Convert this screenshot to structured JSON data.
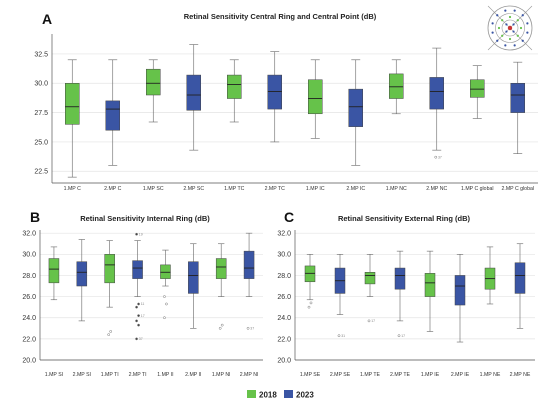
{
  "colors": {
    "y2018": "#66c24a",
    "y2023": "#3a55a4"
  },
  "legend": [
    {
      "label": "2018",
      "color": "#66c24a"
    },
    {
      "label": "2023",
      "color": "#3a55a4"
    }
  ],
  "panels": [
    {
      "letter": "A"
    },
    {
      "letter": "B"
    },
    {
      "letter": "C"
    }
  ],
  "chart_data": [
    {
      "type": "box",
      "title": "Retinal Sensitivity Central Ring and Central Point (dB)",
      "ylim": [
        21.5,
        34.2
      ],
      "yticks": [
        22.5,
        25.0,
        27.5,
        30.0,
        32.5
      ],
      "ytick_labels": [
        "22.5",
        "25.0",
        "27.5",
        "30.0",
        "32.5"
      ],
      "categories": [
        "1.MP C",
        "2.MP C",
        "1.MP SC",
        "2.MP SC",
        "1.MP TC",
        "2.MP TC",
        "1.MP IC",
        "2.MP IC",
        "1.MP NC",
        "2.MP NC",
        "1.MP C global",
        "2.MP C global"
      ],
      "boxes": [
        {
          "min": 22.0,
          "q1": 26.5,
          "median": 28.0,
          "q3": 30.0,
          "max": 32.0,
          "outliers": []
        },
        {
          "min": 23.0,
          "q1": 26.0,
          "median": 27.8,
          "q3": 28.5,
          "max": 32.0,
          "outliers": []
        },
        {
          "min": 26.7,
          "q1": 29.0,
          "median": 30.0,
          "q3": 31.2,
          "max": 32.0,
          "outliers": []
        },
        {
          "min": 24.3,
          "q1": 27.7,
          "median": 29.0,
          "q3": 30.7,
          "max": 33.3,
          "outliers": []
        },
        {
          "min": 26.7,
          "q1": 28.7,
          "median": 29.9,
          "q3": 30.7,
          "max": 32.0,
          "outliers": []
        },
        {
          "min": 25.0,
          "q1": 27.8,
          "median": 29.3,
          "q3": 30.7,
          "max": 32.7,
          "outliers": []
        },
        {
          "min": 25.3,
          "q1": 27.4,
          "median": 28.7,
          "q3": 30.3,
          "max": 32.0,
          "outliers": []
        },
        {
          "min": 23.0,
          "q1": 26.3,
          "median": 28.0,
          "q3": 29.5,
          "max": 32.0,
          "outliers": []
        },
        {
          "min": 27.4,
          "q1": 28.7,
          "median": 29.7,
          "q3": 30.8,
          "max": 32.0,
          "outliers": []
        },
        {
          "min": 24.3,
          "q1": 27.8,
          "median": 29.3,
          "q3": 30.5,
          "max": 33.0,
          "outliers": [
            {
              "value": 23.7,
              "label": "37"
            }
          ]
        },
        {
          "min": 27.0,
          "q1": 28.8,
          "median": 29.5,
          "q3": 30.3,
          "max": 31.5,
          "outliers": []
        },
        {
          "min": 24.0,
          "q1": 27.5,
          "median": 29.0,
          "q3": 30.0,
          "max": 31.8,
          "outliers": []
        }
      ]
    },
    {
      "type": "box",
      "title": "Retinal Sensitivity Internal Ring (dB)",
      "ylim": [
        20.0,
        32.3
      ],
      "yticks": [
        20,
        22,
        24,
        26,
        28,
        30,
        32
      ],
      "ytick_labels": [
        "20.0",
        "22.0",
        "24.0",
        "26.0",
        "28.0",
        "30.0",
        "32.0"
      ],
      "categories": [
        "1.MP SI",
        "2.MP SI",
        "1.MP TI",
        "2.MP TI",
        "1.MP II",
        "2.MP II",
        "1.MP NI",
        "2.MP NI"
      ],
      "boxes": [
        {
          "min": 25.7,
          "q1": 27.3,
          "median": 28.6,
          "q3": 29.6,
          "max": 30.7,
          "outliers": []
        },
        {
          "min": 23.7,
          "q1": 27.0,
          "median": 28.3,
          "q3": 29.3,
          "max": 31.4,
          "outliers": []
        },
        {
          "min": 25.0,
          "q1": 27.3,
          "median": 29.0,
          "q3": 30.0,
          "max": 31.3,
          "outliers": [
            {
              "value": 22.4,
              "label": ""
            },
            {
              "value": 22.7,
              "label": ""
            }
          ]
        },
        {
          "min": 26.0,
          "q1": 27.7,
          "median": 28.7,
          "q3": 29.4,
          "max": 31.3,
          "outliers": [
            {
              "value": 31.9,
              "label": "19"
            },
            {
              "value": 25.3,
              "label": "11"
            },
            {
              "value": 25.0,
              "label": ""
            },
            {
              "value": 24.2,
              "label": "17"
            },
            {
              "value": 23.7,
              "label": ""
            },
            {
              "value": 23.3,
              "label": ""
            },
            {
              "value": 22.0,
              "label": "37"
            }
          ]
        },
        {
          "min": 27.0,
          "q1": 27.7,
          "median": 28.3,
          "q3": 29.0,
          "max": 30.4,
          "outliers": [
            {
              "value": 26.0,
              "label": ""
            },
            {
              "value": 25.3,
              "label": ""
            },
            {
              "value": 24.0,
              "label": ""
            }
          ]
        },
        {
          "min": 23.0,
          "q1": 26.3,
          "median": 28.0,
          "q3": 29.3,
          "max": 31.0,
          "outliers": []
        },
        {
          "min": 26.0,
          "q1": 27.7,
          "median": 28.8,
          "q3": 29.6,
          "max": 31.0,
          "outliers": [
            {
              "value": 23.0,
              "label": ""
            },
            {
              "value": 23.3,
              "label": ""
            }
          ]
        },
        {
          "min": 26.0,
          "q1": 27.7,
          "median": 28.7,
          "q3": 30.3,
          "max": 32.0,
          "outliers": [
            {
              "value": 23.0,
              "label": "37"
            }
          ]
        }
      ]
    },
    {
      "type": "box",
      "title": "Retinal Sensitivity External Ring (dB)",
      "ylim": [
        20.0,
        32.3
      ],
      "yticks": [
        20,
        22,
        24,
        26,
        28,
        30,
        32
      ],
      "ytick_labels": [
        "20.0",
        "22.0",
        "24.0",
        "26.0",
        "28.0",
        "30.0",
        "32.0"
      ],
      "categories": [
        "1.MP SE",
        "2.MP SE",
        "1.MP TE",
        "2.MP TE",
        "1.MP IE",
        "2.MP IE",
        "1.MP NE",
        "2.MP NE"
      ],
      "boxes": [
        {
          "min": 25.7,
          "q1": 27.4,
          "median": 28.2,
          "q3": 28.9,
          "max": 30.0,
          "outliers": [
            {
              "value": 25.0,
              "label": ""
            },
            {
              "value": 25.4,
              "label": ""
            }
          ]
        },
        {
          "min": 24.3,
          "q1": 26.3,
          "median": 27.5,
          "q3": 28.7,
          "max": 30.0,
          "outliers": [
            {
              "value": 22.3,
              "label": "31"
            }
          ]
        },
        {
          "min": 26.0,
          "q1": 27.2,
          "median": 28.0,
          "q3": 28.3,
          "max": 30.0,
          "outliers": [
            {
              "value": 23.7,
              "label": "17"
            }
          ]
        },
        {
          "min": 23.7,
          "q1": 26.7,
          "median": 28.0,
          "q3": 28.7,
          "max": 30.3,
          "outliers": [
            {
              "value": 22.3,
              "label": "17"
            }
          ]
        },
        {
          "min": 22.7,
          "q1": 26.0,
          "median": 27.3,
          "q3": 28.2,
          "max": 30.3,
          "outliers": []
        },
        {
          "min": 21.7,
          "q1": 25.2,
          "median": 27.0,
          "q3": 28.0,
          "max": 30.0,
          "outliers": []
        },
        {
          "min": 25.3,
          "q1": 26.7,
          "median": 27.7,
          "q3": 28.7,
          "max": 30.7,
          "outliers": []
        },
        {
          "min": 23.0,
          "q1": 26.3,
          "median": 28.0,
          "q3": 29.2,
          "max": 31.0,
          "outliers": []
        }
      ]
    }
  ]
}
